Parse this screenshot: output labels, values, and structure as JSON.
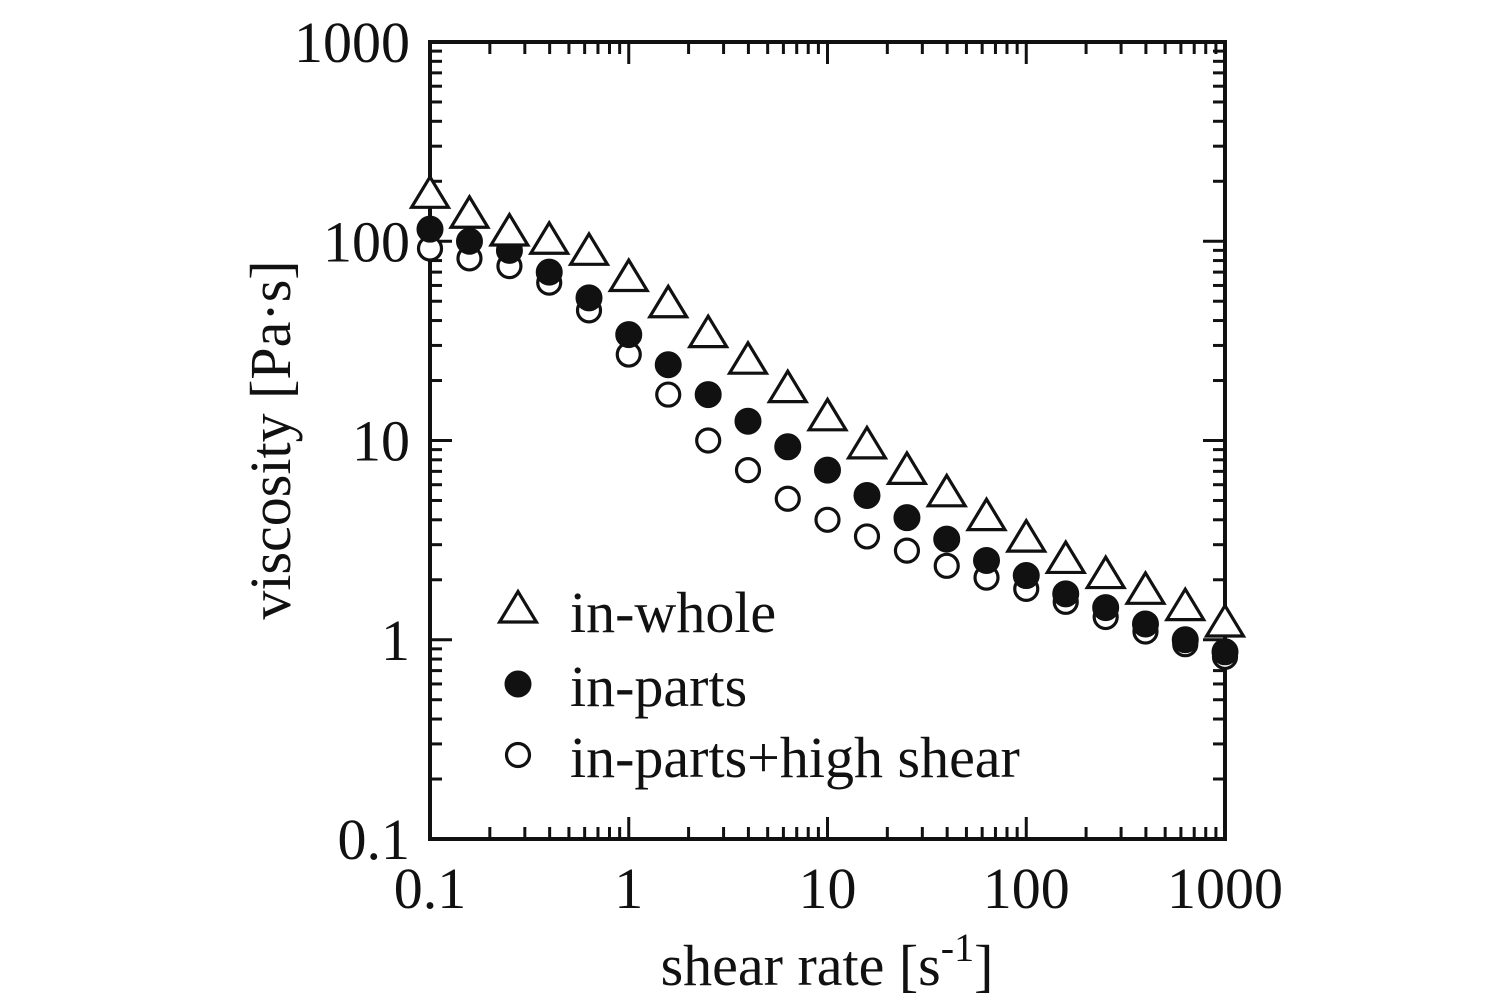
{
  "chart_data": {
    "type": "scatter",
    "title": "",
    "xlabel": "shear rate [s",
    "xlabel_sup": "-1",
    "xlabel_close": "]",
    "ylabel": "viscosity [Pa·s]",
    "xscale": "log",
    "yscale": "log",
    "xlim": [
      0.1,
      1000
    ],
    "ylim": [
      0.1,
      1000
    ],
    "xticks": [
      0.1,
      1,
      10,
      100,
      1000
    ],
    "xtick_labels": [
      "0.1",
      "1",
      "10",
      "100",
      "1000"
    ],
    "yticks": [
      0.1,
      1,
      10,
      100,
      1000
    ],
    "ytick_labels": [
      "0.1",
      "1",
      "10",
      "100",
      "1000"
    ],
    "grid": false,
    "legend_position": "bottom-left",
    "x": [
      0.1,
      0.158,
      0.251,
      0.398,
      0.631,
      1,
      1.58,
      2.51,
      3.98,
      6.31,
      10,
      15.8,
      25.1,
      39.8,
      63.1,
      100,
      158,
      251,
      398,
      631,
      1000
    ],
    "series": [
      {
        "name": "in-whole",
        "marker": "open-triangle",
        "values": [
          170,
          135,
          110,
          100,
          88,
          65,
          48,
          34,
          25,
          18,
          13,
          9.4,
          7,
          5.4,
          4.1,
          3.2,
          2.5,
          2.1,
          1.75,
          1.45,
          1.2
        ]
      },
      {
        "name": "in-parts",
        "marker": "filled-circle",
        "values": [
          115,
          100,
          90,
          70,
          52,
          34,
          24,
          17,
          12.5,
          9.3,
          7.1,
          5.3,
          4.1,
          3.2,
          2.5,
          2.1,
          1.7,
          1.45,
          1.2,
          1.0,
          0.87
        ]
      },
      {
        "name": "in-parts+high shear",
        "marker": "open-circle",
        "values": [
          92,
          82,
          75,
          62,
          45,
          27,
          17,
          10,
          7.1,
          5.1,
          4.0,
          3.3,
          2.8,
          2.35,
          2.05,
          1.8,
          1.55,
          1.3,
          1.1,
          0.95,
          0.82
        ]
      }
    ]
  }
}
